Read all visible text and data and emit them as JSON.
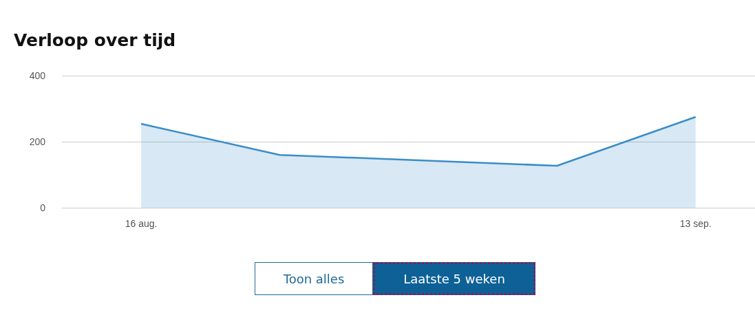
{
  "chart_data": {
    "type": "area",
    "title": "Verloop over tijd",
    "x": [
      "--08-16",
      "--08-23",
      "--08-30",
      "--09-06",
      "--09-13"
    ],
    "series": [
      {
        "color": "#3a8dc8",
        "values": [
          254,
          160,
          144,
          127,
          275
        ]
      }
    ],
    "xlim": [
      "--08-12",
      "--09-16"
    ],
    "xticks": [
      {
        "value": "--08-16",
        "label": "16 aug."
      },
      {
        "value": "--09-13",
        "label": "13 sep."
      }
    ],
    "ylim": [
      0,
      400
    ],
    "yticks": [
      0,
      200,
      400
    ],
    "grid": "y",
    "marker": "none",
    "line_style": "solid",
    "annotations": [
      "Toon alles",
      "Laatste 5 weken"
    ]
  }
}
